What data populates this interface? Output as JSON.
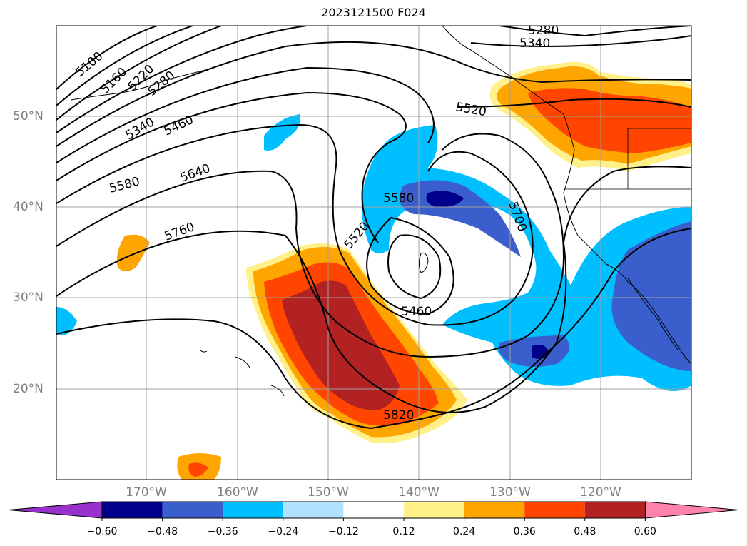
{
  "title": "2023121500 F024",
  "lat_labels": [
    "50°N",
    "40°N",
    "30°N",
    "20°N"
  ],
  "lon_labels": [
    "170°W",
    "160°W",
    "150°W",
    "140°W",
    "130°W",
    "120°W"
  ],
  "contour_labels": [
    "5100",
    "5160",
    "5220",
    "5280",
    "5340",
    "5460",
    "5580",
    "5640",
    "5760",
    "5520",
    "5280",
    "5340",
    "5580",
    "5520",
    "5460",
    "5700",
    "5820"
  ],
  "colorbar": {
    "colors": [
      "#9932cc",
      "#00008b",
      "#3a5fcd",
      "#00bfff",
      "#b0e2ff",
      "#ffffff",
      "#fff08a",
      "#ffa500",
      "#ff4500",
      "#b22222",
      "#ff82ab"
    ],
    "tick_labels": [
      "−0.60",
      "−0.48",
      "−0.36",
      "−0.24",
      "−0.12",
      "0.12",
      "0.24",
      "0.36",
      "0.48",
      "0.60"
    ]
  }
}
